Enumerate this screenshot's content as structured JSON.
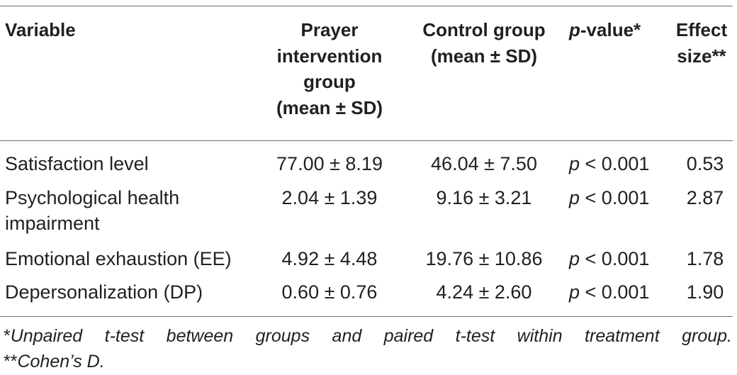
{
  "table": {
    "headers": {
      "variable": "Variable",
      "prayer": [
        "Prayer",
        "intervention",
        "group",
        "(mean ± SD)"
      ],
      "control": [
        "Control group",
        "(mean ± SD)"
      ],
      "pvalue_italic": "p",
      "pvalue_rest": "-value*",
      "effect": [
        "Effect",
        "size**"
      ]
    },
    "rows": [
      {
        "variable": [
          "Satisfaction level"
        ],
        "prayer": "77.00 ± 8.19",
        "control": "46.04 ± 7.50",
        "p_italic": "p",
        "p_rest": " < 0.001",
        "effect": "0.53"
      },
      {
        "variable": [
          "Psychological health",
          "impairment"
        ],
        "prayer": "2.04 ± 1.39",
        "control": "9.16 ± 3.21",
        "p_italic": "p",
        "p_rest": " < 0.001",
        "effect": "2.87"
      },
      {
        "variable": [
          "Emotional exhaustion (EE)"
        ],
        "prayer": "4.92 ± 4.48",
        "control": "19.76 ± 10.86",
        "p_italic": "p",
        "p_rest": " < 0.001",
        "effect": "1.78"
      },
      {
        "variable": [
          "Depersonalization (DP)"
        ],
        "prayer": "0.60 ± 0.76",
        "control": "4.24 ± 2.60",
        "p_italic": "p",
        "p_rest": " < 0.001",
        "effect": "1.90"
      }
    ],
    "footnotes": {
      "line1_marker": "*",
      "line1_text": "Unpaired t-test between groups and paired t-test within treatment group.",
      "line2_marker": "**",
      "line2_text": "Cohen’s D."
    }
  }
}
